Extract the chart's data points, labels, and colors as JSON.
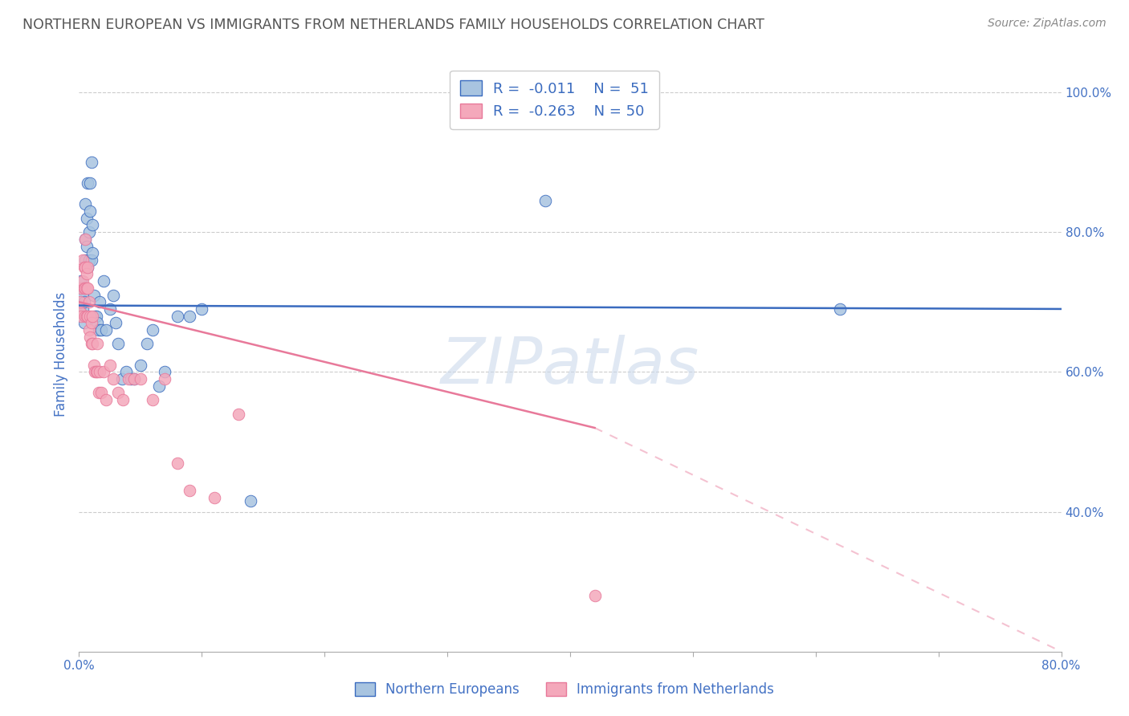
{
  "title": "NORTHERN EUROPEAN VS IMMIGRANTS FROM NETHERLANDS FAMILY HOUSEHOLDS CORRELATION CHART",
  "source": "Source: ZipAtlas.com",
  "ylabel_left": "Family Households",
  "xmin": 0.0,
  "xmax": 0.8,
  "ymin": 0.2,
  "ymax": 1.05,
  "blue_R": -0.011,
  "blue_N": 51,
  "pink_R": -0.263,
  "pink_N": 50,
  "blue_color": "#a8c4e0",
  "pink_color": "#f4a8bb",
  "blue_line_color": "#3a6bbf",
  "pink_line_color": "#e8799a",
  "title_color": "#555555",
  "source_color": "#888888",
  "legend_text_color": "#3a6bbf",
  "axis_tick_color": "#4472c4",
  "watermark": "ZIPatlas",
  "blue_scatter_x": [
    0.001,
    0.001,
    0.002,
    0.002,
    0.003,
    0.003,
    0.004,
    0.004,
    0.005,
    0.005,
    0.005,
    0.006,
    0.006,
    0.007,
    0.007,
    0.008,
    0.008,
    0.009,
    0.009,
    0.01,
    0.01,
    0.011,
    0.011,
    0.012,
    0.013,
    0.014,
    0.015,
    0.016,
    0.017,
    0.018,
    0.02,
    0.022,
    0.025,
    0.028,
    0.03,
    0.032,
    0.035,
    0.038,
    0.042,
    0.045,
    0.05,
    0.055,
    0.06,
    0.065,
    0.07,
    0.08,
    0.09,
    0.1,
    0.38,
    0.62,
    0.14
  ],
  "blue_scatter_y": [
    0.685,
    0.72,
    0.7,
    0.73,
    0.69,
    0.71,
    0.67,
    0.7,
    0.76,
    0.79,
    0.84,
    0.78,
    0.82,
    0.75,
    0.87,
    0.76,
    0.8,
    0.83,
    0.87,
    0.9,
    0.76,
    0.77,
    0.81,
    0.71,
    0.68,
    0.68,
    0.67,
    0.66,
    0.7,
    0.66,
    0.73,
    0.66,
    0.69,
    0.71,
    0.67,
    0.64,
    0.59,
    0.6,
    0.59,
    0.59,
    0.61,
    0.64,
    0.66,
    0.58,
    0.6,
    0.68,
    0.68,
    0.69,
    0.845,
    0.69,
    0.415
  ],
  "pink_scatter_x": [
    0.001,
    0.001,
    0.002,
    0.002,
    0.003,
    0.003,
    0.004,
    0.004,
    0.005,
    0.005,
    0.005,
    0.005,
    0.006,
    0.006,
    0.006,
    0.007,
    0.007,
    0.007,
    0.008,
    0.008,
    0.009,
    0.009,
    0.01,
    0.01,
    0.011,
    0.011,
    0.012,
    0.013,
    0.014,
    0.015,
    0.015,
    0.016,
    0.017,
    0.018,
    0.02,
    0.022,
    0.025,
    0.028,
    0.032,
    0.036,
    0.04,
    0.045,
    0.05,
    0.06,
    0.07,
    0.08,
    0.09,
    0.11,
    0.13,
    0.42
  ],
  "pink_scatter_y": [
    0.685,
    0.7,
    0.68,
    0.72,
    0.73,
    0.76,
    0.72,
    0.75,
    0.68,
    0.72,
    0.75,
    0.79,
    0.68,
    0.72,
    0.74,
    0.68,
    0.72,
    0.75,
    0.66,
    0.7,
    0.65,
    0.68,
    0.64,
    0.67,
    0.64,
    0.68,
    0.61,
    0.6,
    0.6,
    0.6,
    0.64,
    0.57,
    0.6,
    0.57,
    0.6,
    0.56,
    0.61,
    0.59,
    0.57,
    0.56,
    0.59,
    0.59,
    0.59,
    0.56,
    0.59,
    0.47,
    0.43,
    0.42,
    0.54,
    0.28
  ],
  "blue_line_y_start": 0.695,
  "blue_line_y_end": 0.69,
  "pink_line_x_solid_end": 0.42,
  "pink_line_y_start": 0.7,
  "pink_line_y_at_solid_end": 0.52,
  "pink_line_y_end": 0.2
}
